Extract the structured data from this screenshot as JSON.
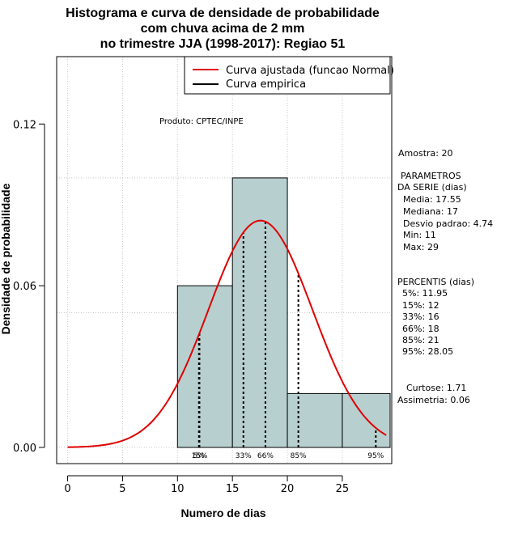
{
  "chart_data": {
    "type": "bar",
    "title_lines": [
      "Histograma e curva de densidade de probabilidade",
      "com chuva acima de 2 mm",
      "no trimestre JJA (1998-2017): Regiao 51"
    ],
    "xlabel": "Numero de dias",
    "ylabel": "Densidade de probabilidade",
    "xlim": [
      -1,
      29.5
    ],
    "ylim": [
      -0.006,
      0.145
    ],
    "x_ticks": [
      0,
      5,
      10,
      15,
      20,
      25
    ],
    "y_ticks": [
      0.0,
      0.06,
      0.12
    ],
    "y_tick_labels": [
      "0.00",
      "0.06",
      "0.12"
    ],
    "grid": true,
    "bar_color": "#b8cfcf",
    "bins": [
      {
        "from": 10,
        "to": 15,
        "density": 0.06
      },
      {
        "from": 15,
        "to": 20,
        "density": 0.1
      },
      {
        "from": 20,
        "to": 25,
        "density": 0.02
      },
      {
        "from": 25,
        "to": 30,
        "density": 0.02
      }
    ],
    "normal_fit": {
      "mean": 17.55,
      "sd": 4.74,
      "x_from": 0,
      "x_to": 29,
      "color": "#e00000"
    },
    "percentile_lines": [
      {
        "label": "5%",
        "x": 11.95
      },
      {
        "label": "15%",
        "x": 12
      },
      {
        "label": "33%",
        "x": 16
      },
      {
        "label": "66%",
        "x": 18
      },
      {
        "label": "85%",
        "x": 21
      },
      {
        "label": "95%",
        "x": 28.05
      }
    ],
    "legend": {
      "position": "top-right",
      "entries": [
        {
          "label": "Curva ajustada (funcao Normal)",
          "color": "#e00000"
        },
        {
          "label": "Curva empirica",
          "color": "#000000"
        }
      ]
    },
    "annotation": "Produto: CPTEC/INPE"
  },
  "side_panel": {
    "amostra": "Amostra: 20",
    "parametros_title": "PARAMETROS",
    "parametros_subtitle": "DA SERIE (dias)",
    "parametros": [
      "Media: 17.55",
      "Mediana: 17",
      "Desvio padrao: 4.74",
      "Min: 11",
      "Max: 29"
    ],
    "percentis_title": "PERCENTIS (dias)",
    "percentis": [
      "5%: 11.95",
      "15%: 12",
      "33%: 16",
      "66%: 18",
      "85%: 21",
      "95%: 28.05"
    ],
    "curtose": "Curtose: 1.71",
    "assimetria": "Assimetria: 0.06"
  }
}
